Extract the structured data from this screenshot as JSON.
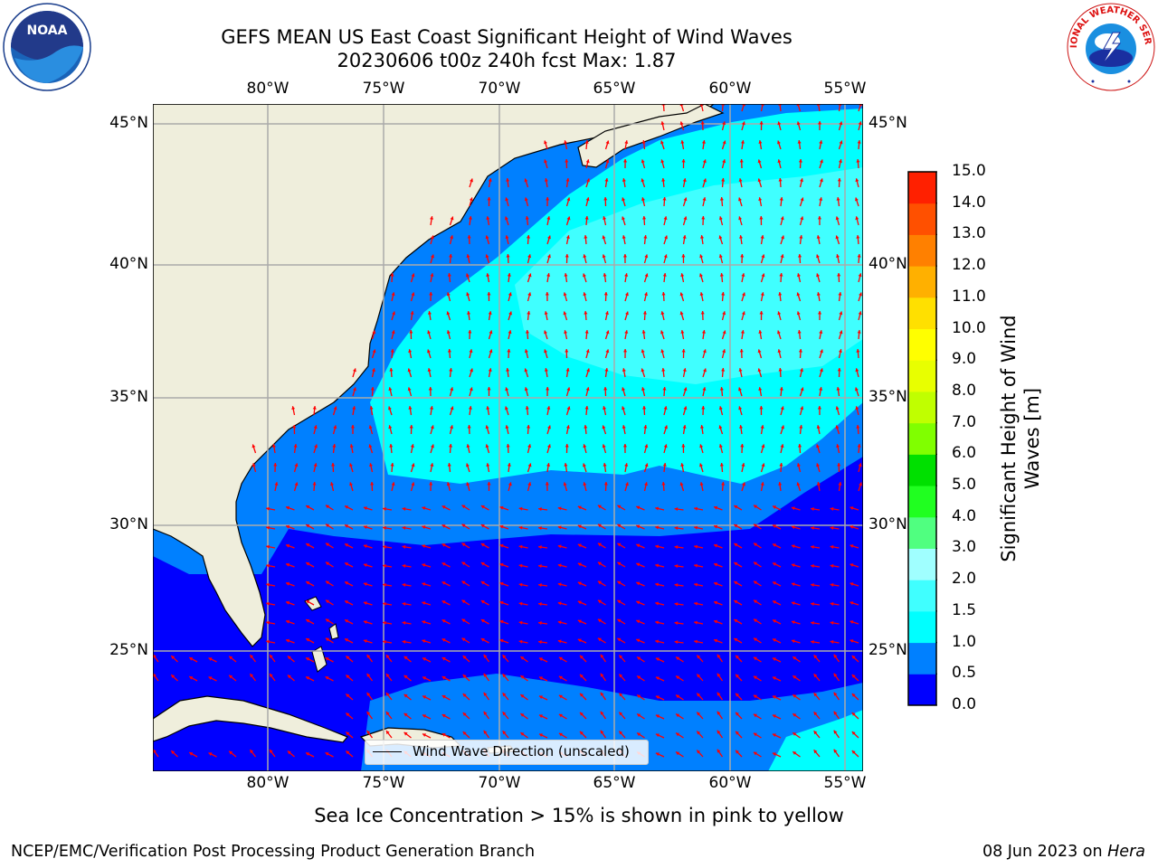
{
  "title_line1": "GEFS MEAN US East Coast Significant Height of Wind Waves",
  "title_line2": "20230606 t00z 240h fcst   Max: 1.87",
  "subtitle": "Sea Ice Concentration > 15% is shown in pink to yellow",
  "footer_left": "NCEP/EMC/Verification Post Processing Product Generation Branch",
  "footer_date": "08 Jun 2023 on ",
  "footer_machine": "Hera",
  "legend_label": "Wind Wave Direction (unscaled)",
  "logos": {
    "left": "NOAA",
    "right": "NATIONAL WEATHER SERVICE"
  },
  "lon_labels": [
    "80°W",
    "75°W",
    "70°W",
    "65°W",
    "60°W",
    "55°W"
  ],
  "lat_labels": [
    "45°N",
    "40°N",
    "35°N",
    "30°N",
    "25°N"
  ],
  "colorbar": {
    "label": "Significant Height of Wind Waves [m]",
    "ticks": [
      "0.0",
      "0.5",
      "1.0",
      "1.5",
      "2.0",
      "3.0",
      "4.0",
      "5.0",
      "6.0",
      "7.0",
      "8.0",
      "9.0",
      "10.0",
      "11.0",
      "12.0",
      "13.0",
      "14.0",
      "15.0"
    ],
    "colors": [
      "#0000ff",
      "#0080ff",
      "#00ffff",
      "#40ffff",
      "#a0ffff",
      "#50ff80",
      "#20ff20",
      "#00e000",
      "#80ff00",
      "#c0ff00",
      "#e8ff00",
      "#ffff00",
      "#ffe000",
      "#ffb000",
      "#ff8000",
      "#ff5000",
      "#ff2000",
      "#ff0000"
    ]
  },
  "map_colors": {
    "land": "#efeedc",
    "wave_0_05": "#0000ff",
    "wave_05_10": "#0080ff",
    "wave_10_15": "#00ffff",
    "wave_15_20": "#40ffff",
    "arrow": "#ff0000"
  }
}
